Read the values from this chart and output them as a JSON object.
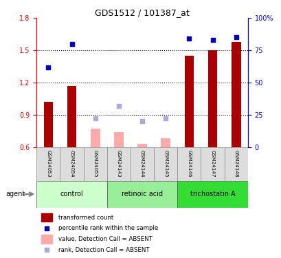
{
  "title": "GDS1512 / 101387_at",
  "samples": [
    "GSM24053",
    "GSM24054",
    "GSM24055",
    "GSM24143",
    "GSM24144",
    "GSM24145",
    "GSM24146",
    "GSM24147",
    "GSM24148"
  ],
  "groups": [
    {
      "name": "control",
      "indices": [
        0,
        1,
        2
      ],
      "color": "#ccffcc"
    },
    {
      "name": "retinoic acid",
      "indices": [
        3,
        4,
        5
      ],
      "color": "#99ee99"
    },
    {
      "name": "trichostatin A",
      "indices": [
        6,
        7,
        8
      ],
      "color": "#33dd33"
    }
  ],
  "transformed_count": [
    1.02,
    1.17,
    null,
    null,
    null,
    null,
    1.45,
    1.5,
    1.58
  ],
  "transformed_count_absent": [
    null,
    null,
    0.77,
    0.74,
    0.63,
    0.68,
    null,
    null,
    null
  ],
  "percentile_rank_pct": [
    62,
    80,
    null,
    null,
    null,
    null,
    84,
    83,
    85
  ],
  "percentile_rank_absent_pct": [
    null,
    null,
    22,
    32,
    20,
    22,
    null,
    null,
    null
  ],
  "ylim_left": [
    0.6,
    1.8
  ],
  "ylim_right": [
    0,
    100
  ],
  "yticks_left": [
    0.6,
    0.9,
    1.2,
    1.5,
    1.8
  ],
  "yticks_right": [
    0,
    25,
    50,
    75,
    100
  ],
  "ytick_right_labels": [
    "0",
    "25",
    "50",
    "75",
    "100%"
  ],
  "hlines": [
    0.9,
    1.2,
    1.5
  ],
  "bar_color_present": "#aa0000",
  "bar_color_absent": "#ffaaaa",
  "dot_color_present": "#0000bb",
  "dot_color_absent": "#aaaadd",
  "legend_items": [
    {
      "label": "transformed count",
      "color": "#aa0000",
      "type": "bar"
    },
    {
      "label": "percentile rank within the sample",
      "color": "#0000bb",
      "type": "dot"
    },
    {
      "label": "value, Detection Call = ABSENT",
      "color": "#ffaaaa",
      "type": "bar"
    },
    {
      "label": "rank, Detection Call = ABSENT",
      "color": "#aaaadd",
      "type": "dot"
    }
  ],
  "agent_label": "agent",
  "bar_width": 0.4,
  "dot_size": 25
}
